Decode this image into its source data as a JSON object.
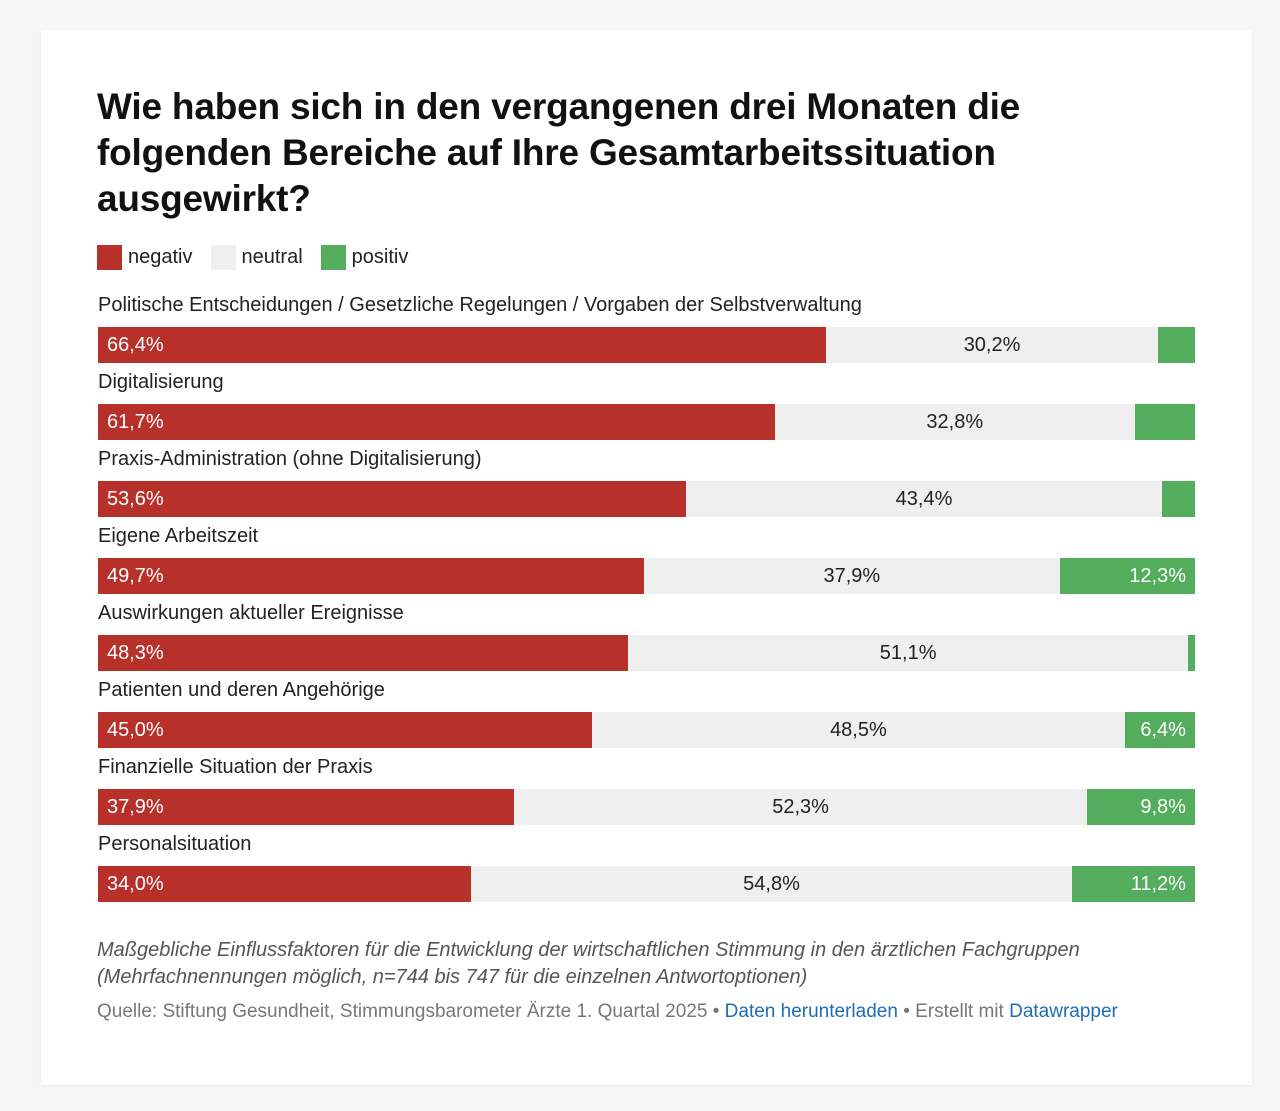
{
  "title": "Wie haben sich in den vergangenen drei Monaten die folgenden Bereiche auf Ihre Gesamtarbeitssituation ausgewirkt?",
  "colors": {
    "negativ": "#b8302a",
    "neutral": "#efefef",
    "positiv": "#53ad5c"
  },
  "chart_data": {
    "type": "bar",
    "orientation": "horizontal",
    "stacked": true,
    "title": "Wie haben sich in den vergangenen drei Monaten die folgenden Bereiche auf Ihre Gesamtarbeitssituation ausgewirkt?",
    "legend": [
      "negativ",
      "neutral",
      "positiv"
    ],
    "legend_position": "top-left",
    "unit": "%",
    "categories": [
      "Politische Entscheidungen / Gesetzliche Regelungen / Vorgaben der Selbstverwaltung",
      "Digitalisierung",
      "Praxis-Administration (ohne Digitalisierung)",
      "Eigene Arbeitszeit",
      "Auswirkungen aktueller Ereignisse",
      "Patienten und deren Angehörige",
      "Finanzielle Situation der Praxis",
      "Personalsituation"
    ],
    "series": [
      {
        "name": "negativ",
        "values": [
          66.4,
          61.7,
          53.6,
          49.7,
          48.3,
          45.0,
          37.9,
          34.0
        ],
        "labels": [
          "66,4%",
          "61,7%",
          "53,6%",
          "49,7%",
          "48,3%",
          "45,0%",
          "37,9%",
          "34,0%"
        ]
      },
      {
        "name": "neutral",
        "values": [
          30.2,
          32.8,
          43.4,
          37.9,
          51.1,
          48.5,
          52.3,
          54.8
        ],
        "labels": [
          "30,2%",
          "32,8%",
          "43,4%",
          "37,9%",
          "51,1%",
          "48,5%",
          "52,3%",
          "54,8%"
        ]
      },
      {
        "name": "positiv",
        "values": [
          3.4,
          5.5,
          3.0,
          12.3,
          0.6,
          6.4,
          9.8,
          11.2
        ],
        "labels": [
          "",
          "",
          "",
          "12,3%",
          "",
          "6,4%",
          "9,8%",
          "11,2%"
        ]
      }
    ],
    "xlim": [
      0,
      100
    ]
  },
  "notes": "Maßgebliche Einflussfaktoren für die Entwicklung der wirtschaftlichen Stimmung in den ärztlichen Fachgruppen (Mehrfachnennungen möglich, n=744 bis 747 für die einzelnen Antwortoptionen)",
  "source": {
    "prefix": "Quelle: Stiftung Gesundheit, Stimmungsbarometer Ärzte 1. Quartal 2025",
    "separator": "•",
    "download_label": "Daten herunterladen",
    "created_with": "Erstellt mit",
    "tool_label": "Datawrapper"
  }
}
